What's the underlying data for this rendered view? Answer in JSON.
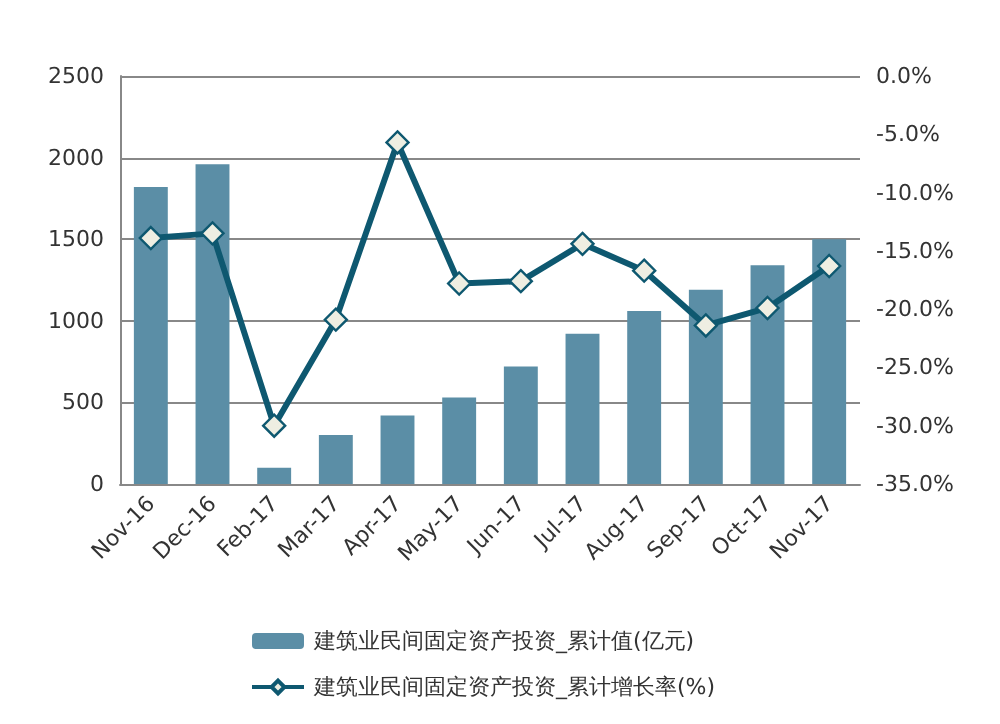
{
  "chart_data": {
    "type": "bar",
    "categories": [
      "Nov-16",
      "Dec-16",
      "Feb-17",
      "Mar-17",
      "Apr-17",
      "May-17",
      "Jun-17",
      "Jul-17",
      "Aug-17",
      "Sep-17",
      "Oct-17",
      "Nov-17"
    ],
    "series": [
      {
        "name": "建筑业民间固定资产投资_累计值(亿元)",
        "color": "#5b8ea6",
        "values": [
          1820,
          1960,
          100,
          300,
          420,
          530,
          720,
          920,
          1060,
          1190,
          1340,
          1500
        ]
      },
      {
        "name": "建筑业民间固定资产投资_累计增长率(%)",
        "type": "line",
        "axis": "y2",
        "color": "#0e5870",
        "marker": "diamond",
        "values": [
          -13.9,
          -13.5,
          -30,
          -20.9,
          -5.7,
          -17.8,
          -17.6,
          -14.4,
          -16.7,
          -21.4,
          -19.9,
          -16.3
        ]
      }
    ],
    "ylim": [
      0,
      2500
    ],
    "yticks": [
      0,
      500,
      1000,
      1500,
      2000,
      2500
    ],
    "y2lim": [
      -35,
      0
    ],
    "y2ticks": [
      {
        "value": -35,
        "label": "-35.0%"
      },
      {
        "value": -30,
        "label": "-30.0%"
      },
      {
        "value": -25,
        "label": "-25.0%"
      },
      {
        "value": -20,
        "label": "-20.0%"
      },
      {
        "value": -15,
        "label": "-15.0%"
      },
      {
        "value": -10,
        "label": "-10.0%"
      },
      {
        "value": -5,
        "label": "-5.0%"
      },
      {
        "value": 0,
        "label": "0.0%"
      }
    ],
    "grid": "y",
    "legend": "bottom"
  }
}
